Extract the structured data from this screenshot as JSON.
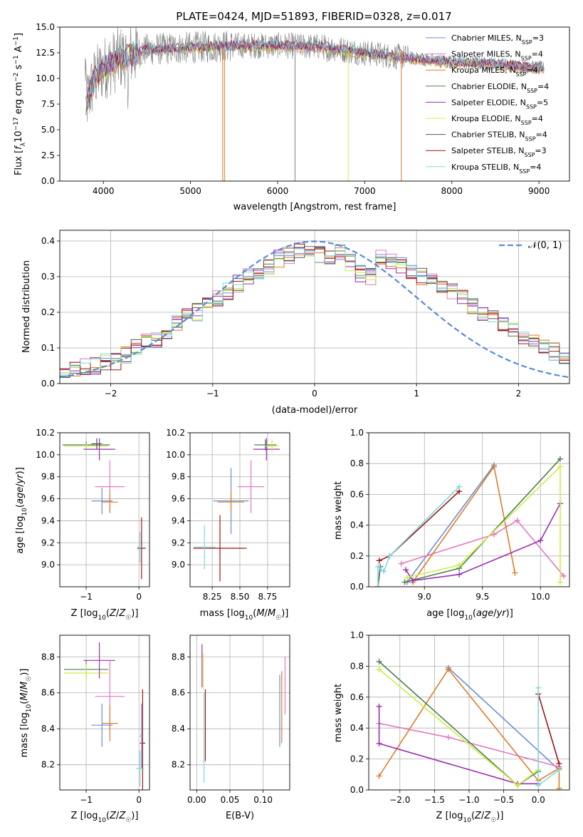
{
  "colors": {
    "c1": "#6a8fd6",
    "c2": "#e377c2",
    "c3": "#e07b27",
    "c4": "#4e7f53",
    "c5": "#9b2fb0",
    "c6": "#ccee44",
    "c7": "#555555",
    "c8": "#a01414",
    "c9": "#7fd8d8",
    "gauss": "#5b8bd6",
    "grid": "#b0b0b0",
    "spec": "#808080"
  },
  "chart_data": [
    {
      "id": "spectrum",
      "type": "line",
      "title": "PLATE=0424, MJD=51893, FIBERID=0328, z=0.017",
      "xlabel": "wavelength [Angstrom, rest frame]",
      "ylabel": "Flux [f_λ10^-17 erg cm^-2 s^-1 A^-1]",
      "xlim": [
        3500,
        9350
      ],
      "ylim": [
        0,
        15
      ],
      "xticks": [
        4000,
        5000,
        6000,
        7000,
        8000,
        9000
      ],
      "yticks": [
        0.0,
        2.5,
        5.0,
        7.5,
        10.0,
        12.5,
        15.0
      ],
      "ytick_labels": [
        "0.0",
        "2.5",
        "5.0",
        "7.5",
        "10.0",
        "12.5",
        "15.0"
      ],
      "legend_position": "upper-right",
      "legend": [
        {
          "label": "Chabrier MILES, N",
          "sub": "SSP",
          "tail": "=3",
          "color": "c1"
        },
        {
          "label": "Salpeter MILES, N",
          "sub": "SSP",
          "tail": "=4",
          "color": "c2"
        },
        {
          "label": "Kroupa MILES, N",
          "sub": "SSP",
          "tail": "=4",
          "color": "c3"
        },
        {
          "label": "Chabrier ELODIE, N",
          "sub": "SSP",
          "tail": "=4",
          "color": "c4"
        },
        {
          "label": "Salpeter ELODIE, N",
          "sub": "SSP",
          "tail": "=5",
          "color": "c5"
        },
        {
          "label": "Kroupa ELODIE, N",
          "sub": "SSP",
          "tail": "=4",
          "color": "c6"
        },
        {
          "label": "Chabrier STELIB, N",
          "sub": "SSP",
          "tail": "=4",
          "color": "c7"
        },
        {
          "label": "Salpeter STELIB, N",
          "sub": "SSP",
          "tail": "=3",
          "color": "c8"
        },
        {
          "label": "Kroupa STELIB, N",
          "sub": "SSP",
          "tail": "=4",
          "color": "c9"
        }
      ],
      "continuum": [
        [
          3800,
          7.5
        ],
        [
          3900,
          10.0
        ],
        [
          4000,
          11.0
        ],
        [
          4200,
          12.0
        ],
        [
          4500,
          12.8
        ],
        [
          5000,
          13.0
        ],
        [
          5500,
          13.2
        ],
        [
          6000,
          13.2
        ],
        [
          6500,
          13.1
        ],
        [
          7000,
          12.5
        ],
        [
          7500,
          12.0
        ],
        [
          8000,
          11.6
        ],
        [
          8500,
          11.4
        ],
        [
          9050,
          11.0
        ]
      ]
    },
    {
      "id": "residuals",
      "type": "line",
      "xlabel": "(data-model)/error",
      "ylabel": "Normed distribution",
      "xlim": [
        -2.5,
        2.5
      ],
      "ylim": [
        0,
        0.43
      ],
      "xticks": [
        -2,
        -1,
        0,
        1,
        2
      ],
      "xtick_labels": [
        "−2",
        "−1",
        "0",
        "1",
        "2"
      ],
      "yticks": [
        0.0,
        0.1,
        0.2,
        0.3,
        0.4
      ],
      "ytick_labels": [
        "0.0",
        "0.1",
        "0.2",
        "0.3",
        "0.4"
      ],
      "legend_label": "𝒩(0, 1)",
      "bin_width": 0.1,
      "hist_base": [
        0.04,
        0.04,
        0.05,
        0.05,
        0.06,
        0.06,
        0.08,
        0.1,
        0.12,
        0.12,
        0.15,
        0.17,
        0.19,
        0.2,
        0.22,
        0.24,
        0.26,
        0.28,
        0.3,
        0.31,
        0.33,
        0.35,
        0.36,
        0.37,
        0.37,
        0.36,
        0.36,
        0.37,
        0.34,
        0.31,
        0.3,
        0.36,
        0.34,
        0.33,
        0.31,
        0.3,
        0.29,
        0.27,
        0.26,
        0.24,
        0.22,
        0.2,
        0.19,
        0.17,
        0.15,
        0.13,
        0.12,
        0.1,
        0.09,
        0.08
      ]
    },
    {
      "id": "age-vs-Z",
      "type": "scatter",
      "xlabel": "Z [log10(Z/Z☉)]",
      "ylabel": "age  [log10(age/yr)]",
      "xlim": [
        -1.5,
        0.2
      ],
      "ylim": [
        8.8,
        10.2
      ],
      "xticks": [
        -1,
        0
      ],
      "xtick_labels": [
        "−1",
        "0"
      ],
      "yticks": [
        9.0,
        9.2,
        9.4,
        9.6,
        9.8,
        10.0,
        10.2
      ],
      "ytick_labels": [
        "9.0",
        "9.2",
        "9.4",
        "9.6",
        "9.8",
        "10.0",
        "10.2"
      ],
      "points": [
        {
          "x": -1.0,
          "y": 10.09,
          "xe": 0.45,
          "ye": 0.03,
          "color": "c4"
        },
        {
          "x": -1.0,
          "y": 10.08,
          "xe": 0.42,
          "ye": 0.02,
          "color": "c6"
        },
        {
          "x": -0.75,
          "y": 10.05,
          "xe": 0.3,
          "ye": 0.1,
          "color": "c5"
        },
        {
          "x": -0.8,
          "y": 10.1,
          "xe": 0.1,
          "ye": 0.05,
          "color": "c7"
        },
        {
          "x": -0.55,
          "y": 9.71,
          "xe": 0.28,
          "ye": 0.24,
          "color": "c2"
        },
        {
          "x": -0.7,
          "y": 9.58,
          "xe": 0.2,
          "ye": 0.12,
          "color": "c1"
        },
        {
          "x": -0.55,
          "y": 9.57,
          "xe": 0.15,
          "ye": 0.1,
          "color": "c3"
        },
        {
          "x": 0.05,
          "y": 9.15,
          "xe": 0.08,
          "ye": 0.28,
          "color": "c8"
        },
        {
          "x": 0.02,
          "y": 9.16,
          "xe": 0.05,
          "ye": 0.14,
          "color": "c9"
        }
      ]
    },
    {
      "id": "age-vs-mass",
      "type": "scatter",
      "xlabel": "mass [log10(M/M☉)]",
      "xlim": [
        8.05,
        8.95
      ],
      "ylim": [
        8.8,
        10.2
      ],
      "xticks": [
        8.25,
        8.5,
        8.75
      ],
      "xtick_labels": [
        "8.25",
        "8.50",
        "8.75"
      ],
      "yticks": [
        9.0,
        9.2,
        9.4,
        9.6,
        9.8,
        10.0,
        10.2
      ],
      "ytick_labels": [
        "9.0",
        "9.2",
        "9.4",
        "9.6",
        "9.8",
        "10.0",
        "10.2"
      ],
      "points": [
        {
          "x": 8.73,
          "y": 10.09,
          "xe": 0.1,
          "ye": 0.05,
          "color": "c4"
        },
        {
          "x": 8.74,
          "y": 10.05,
          "xe": 0.12,
          "ye": 0.1,
          "color": "c5"
        },
        {
          "x": 8.79,
          "y": 10.08,
          "xe": 0.06,
          "ye": 0.06,
          "color": "c6"
        },
        {
          "x": 8.6,
          "y": 9.71,
          "xe": 0.12,
          "ye": 0.24,
          "color": "c2"
        },
        {
          "x": 8.42,
          "y": 9.58,
          "xe": 0.16,
          "ye": 0.3,
          "color": "c1"
        },
        {
          "x": 8.42,
          "y": 9.57,
          "xe": 0.12,
          "ye": 0.1,
          "color": "c3"
        },
        {
          "x": 8.32,
          "y": 9.15,
          "xe": 0.24,
          "ye": 0.3,
          "color": "c8"
        },
        {
          "x": 8.18,
          "y": 9.16,
          "xe": 0.1,
          "ye": 0.2,
          "color": "c9"
        }
      ]
    },
    {
      "id": "weight-vs-age",
      "type": "line",
      "xlabel": "age  [log10(age/yr)]",
      "ylabel": "mass weight",
      "xlim": [
        8.52,
        10.25
      ],
      "ylim": [
        0,
        1
      ],
      "xticks": [
        9.0,
        9.5,
        10.0
      ],
      "xtick_labels": [
        "9.0",
        "9.5",
        "10.0"
      ],
      "yticks": [
        0.0,
        0.2,
        0.4,
        0.6,
        0.8,
        1.0
      ],
      "ytick_labels": [
        "0.0",
        "0.2",
        "0.4",
        "0.6",
        "0.8",
        "1.0"
      ],
      "series": [
        {
          "color": "c1",
          "x": [
            8.85,
            9.6
          ],
          "y": [
            0.03,
            0.79
          ]
        },
        {
          "color": "c2",
          "x": [
            8.8,
            9.6,
            9.8,
            10.2
          ],
          "y": [
            0.15,
            0.34,
            0.43,
            0.07
          ]
        },
        {
          "color": "c3",
          "x": [
            8.9,
            9.6,
            9.78
          ],
          "y": [
            0.03,
            0.78,
            0.09
          ]
        },
        {
          "color": "c4",
          "x": [
            8.83,
            9.3,
            10.17
          ],
          "y": [
            0.03,
            0.12,
            0.83
          ]
        },
        {
          "color": "c5",
          "x": [
            8.84,
            8.9,
            9.3,
            10.0,
            10.17
          ],
          "y": [
            0.11,
            0.04,
            0.08,
            0.3,
            0.54
          ]
        },
        {
          "color": "c6",
          "x": [
            8.85,
            9.3,
            10.17,
            10.17
          ],
          "y": [
            0.06,
            0.14,
            0.78,
            0.03
          ]
        },
        {
          "color": "c7",
          "x": [
            8.6,
            8.62
          ],
          "y": [
            0.0,
            0.13
          ]
        },
        {
          "color": "c8",
          "x": [
            8.61,
            8.7,
            9.3
          ],
          "y": [
            0.17,
            0.2,
            0.62
          ]
        },
        {
          "color": "c9",
          "x": [
            8.6,
            8.6,
            8.65,
            8.7,
            9.3
          ],
          "y": [
            0.0,
            0.13,
            0.1,
            0.2,
            0.65
          ]
        }
      ]
    },
    {
      "id": "mass-vs-Z",
      "type": "scatter",
      "xlabel": "Z [log10(Z/Z☉)]",
      "ylabel": "mass [log10(M/M☉)]",
      "xlim": [
        -1.5,
        0.2
      ],
      "ylim": [
        8.06,
        8.92
      ],
      "xticks": [
        -1,
        0
      ],
      "xtick_labels": [
        "−1",
        "0"
      ],
      "yticks": [
        8.2,
        8.4,
        8.6,
        8.8
      ],
      "ytick_labels": [
        "8.2",
        "8.4",
        "8.6",
        "8.8"
      ],
      "points": [
        {
          "x": -1.0,
          "y": 8.73,
          "xe": 0.42,
          "ye": 0.05,
          "color": "c4"
        },
        {
          "x": -1.0,
          "y": 8.71,
          "xe": 0.42,
          "ye": 0.05,
          "color": "c6"
        },
        {
          "x": -0.75,
          "y": 8.78,
          "xe": 0.3,
          "ye": 0.1,
          "color": "c5"
        },
        {
          "x": -0.55,
          "y": 8.58,
          "xe": 0.28,
          "ye": 0.2,
          "color": "c2"
        },
        {
          "x": -0.7,
          "y": 8.42,
          "xe": 0.2,
          "ye": 0.12,
          "color": "c1"
        },
        {
          "x": -0.55,
          "y": 8.43,
          "xe": 0.15,
          "ye": 0.1,
          "color": "c3"
        },
        {
          "x": 0.07,
          "y": 8.32,
          "xe": 0.05,
          "ye": 0.3,
          "color": "c8"
        },
        {
          "x": 0.02,
          "y": 8.18,
          "xe": 0.08,
          "ye": 0.1,
          "color": "c9"
        },
        {
          "x": 0.05,
          "y": 8.36,
          "xe": 0.03,
          "ye": 0.18,
          "color": "c1"
        }
      ]
    },
    {
      "id": "mass-vs-ebv",
      "type": "scatter",
      "xlabel": "E(B-V)",
      "xlim": [
        -0.01,
        0.14
      ],
      "ylim": [
        8.06,
        8.92
      ],
      "xticks": [
        0.0,
        0.05,
        0.1
      ],
      "xtick_labels": [
        "0.00",
        "0.05",
        "0.10"
      ],
      "yticks": [
        8.2,
        8.4,
        8.6,
        8.8
      ],
      "ytick_labels": [
        "8.2",
        "8.4",
        "8.6",
        "8.8"
      ],
      "points": [
        {
          "x": 0.008,
          "y": 8.75,
          "xe": 0,
          "ye": 0.12,
          "color": "c5"
        },
        {
          "x": 0.01,
          "y": 8.72,
          "xe": 0,
          "ye": 0.1,
          "color": "c6"
        },
        {
          "x": 0.011,
          "y": 8.35,
          "xe": 0,
          "ye": 0.25,
          "color": "c9"
        },
        {
          "x": 0.013,
          "y": 8.42,
          "xe": 0,
          "ye": 0.2,
          "color": "c8"
        },
        {
          "x": 0.125,
          "y": 8.5,
          "xe": 0,
          "ye": 0.2,
          "color": "c1"
        },
        {
          "x": 0.128,
          "y": 8.52,
          "xe": 0,
          "ye": 0.2,
          "color": "c3"
        },
        {
          "x": 0.133,
          "y": 8.64,
          "xe": 0,
          "ye": 0.16,
          "color": "c2"
        }
      ]
    },
    {
      "id": "weight-vs-Z",
      "type": "line",
      "xlabel": "Z [log10(Z/Z☉)]",
      "ylabel": "mass weight",
      "xlim": [
        -2.45,
        0.45
      ],
      "ylim": [
        0,
        1
      ],
      "xticks": [
        -2.0,
        -1.5,
        -1.0,
        -0.5,
        0.0
      ],
      "xtick_labels": [
        "−2.0",
        "−1.5",
        "−1.0",
        "−0.5",
        "0.0"
      ],
      "yticks": [
        0.0,
        0.2,
        0.4,
        0.6,
        0.8,
        1.0
      ],
      "ytick_labels": [
        "0.0",
        "0.2",
        "0.4",
        "0.6",
        "0.8",
        "1.0"
      ],
      "series": [
        {
          "color": "c1",
          "x": [
            -1.3,
            0.3
          ],
          "y": [
            0.79,
            0.13
          ]
        },
        {
          "color": "c2",
          "x": [
            -2.3,
            -1.3,
            0.3
          ],
          "y": [
            0.43,
            0.34,
            0.15
          ]
        },
        {
          "color": "c3",
          "x": [
            -2.3,
            -1.3,
            0.0,
            0.3,
            0.3
          ],
          "y": [
            0.09,
            0.78,
            0.06,
            0.14,
            0.01
          ]
        },
        {
          "color": "c4",
          "x": [
            -2.3,
            -0.3,
            0.0
          ],
          "y": [
            0.83,
            0.03,
            0.12
          ]
        },
        {
          "color": "c5",
          "x": [
            -2.3,
            -2.3,
            -0.3,
            0.0
          ],
          "y": [
            0.54,
            0.3,
            0.04,
            0.04
          ]
        },
        {
          "color": "c6",
          "x": [
            -2.3,
            -0.3,
            0.0
          ],
          "y": [
            0.78,
            0.03,
            0.13
          ]
        },
        {
          "color": "c8",
          "x": [
            0.0,
            0.3
          ],
          "y": [
            0.62,
            0.17
          ]
        },
        {
          "color": "c9",
          "x": [
            0.0,
            0.0,
            0.3
          ],
          "y": [
            0.66,
            0.03,
            0.13
          ]
        }
      ]
    }
  ]
}
